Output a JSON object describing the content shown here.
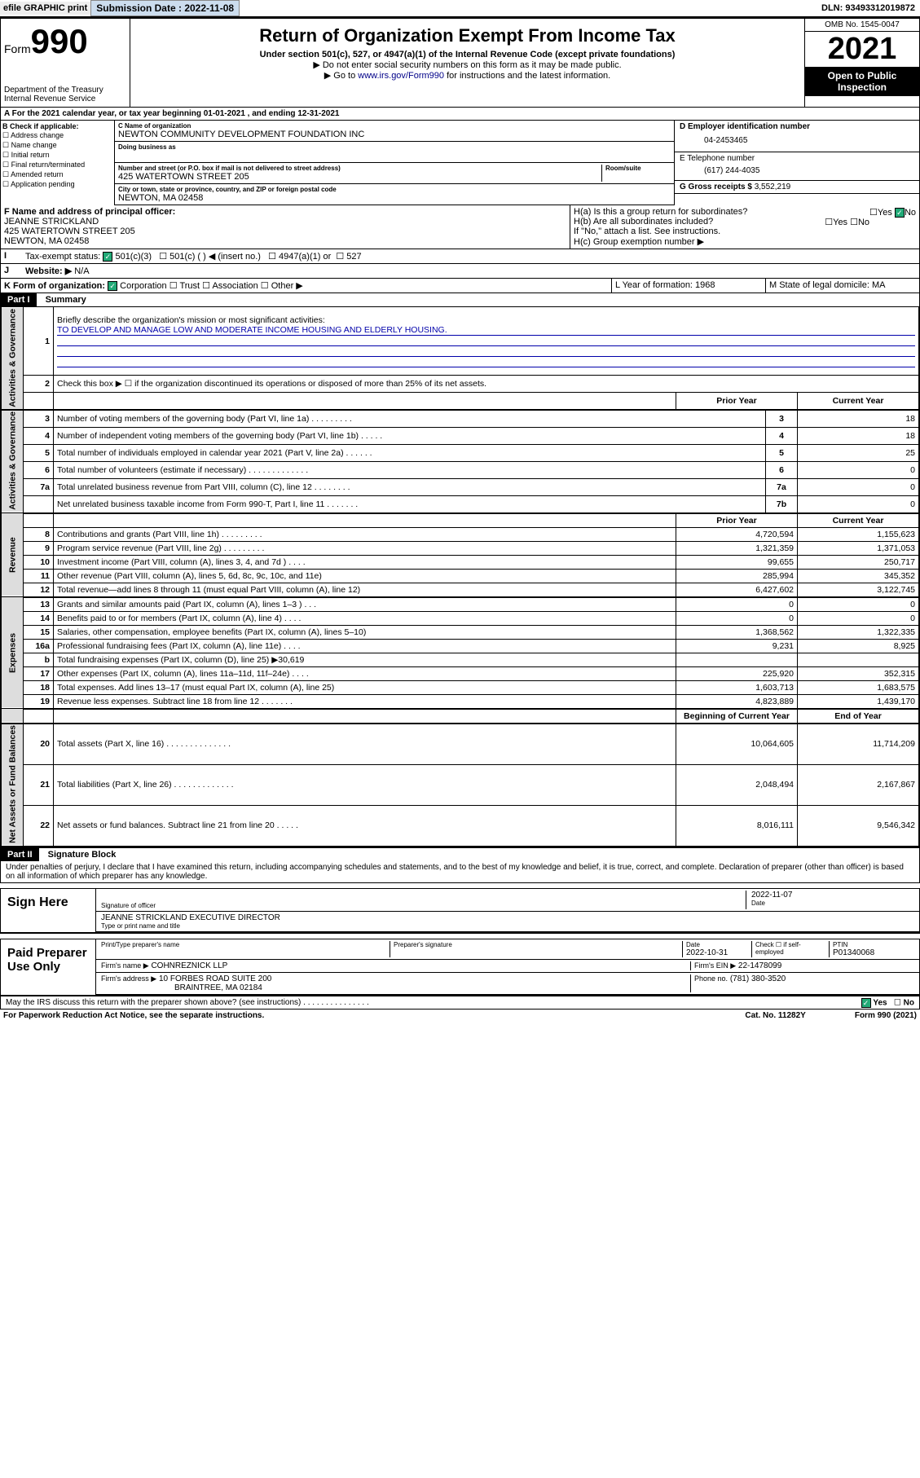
{
  "topbar": {
    "efile": "efile GRAPHIC print",
    "sub_label": "Submission Date : 2022-11-08",
    "dln": "DLN: 93493312019872"
  },
  "header": {
    "form_prefix": "Form",
    "form_num": "990",
    "title": "Return of Organization Exempt From Income Tax",
    "subtitle": "Under section 501(c), 527, or 4947(a)(1) of the Internal Revenue Code (except private foundations)",
    "warn": "▶ Do not enter social security numbers on this form as it may be made public.",
    "goto_pre": "▶ Go to ",
    "goto_link": "www.irs.gov/Form990",
    "goto_post": " for instructions and the latest information.",
    "dept": "Department of the Treasury\nInternal Revenue Service",
    "omb": "OMB No. 1545-0047",
    "year": "2021",
    "open": "Open to Public Inspection"
  },
  "row_a": "A For the 2021 calendar year, or tax year beginning 01-01-2021   , and ending 12-31-2021",
  "col_b": {
    "header": "B Check if applicable:",
    "opts": [
      "Address change",
      "Name change",
      "Initial return",
      "Final return/terminated",
      "Amended return",
      "Application pending"
    ]
  },
  "col_c": {
    "name_lbl": "C Name of organization",
    "name": "NEWTON COMMUNITY DEVELOPMENT FOUNDATION INC",
    "dba_lbl": "Doing business as",
    "addr_lbl": "Number and street (or P.O. box if mail is not delivered to street address)",
    "room_lbl": "Room/suite",
    "addr": "425 WATERTOWN STREET 205",
    "city_lbl": "City or town, state or province, country, and ZIP or foreign postal code",
    "city": "NEWTON, MA  02458"
  },
  "col_d": {
    "ein_lbl": "D Employer identification number",
    "ein": "04-2453465",
    "tel_lbl": "E Telephone number",
    "tel": "(617) 244-4035",
    "gross_lbl": "G Gross receipts $",
    "gross": "3,552,219"
  },
  "row_f": {
    "lbl": "F Name and address of principal officer:",
    "name": "JEANNE STRICKLAND",
    "addr1": "425 WATERTOWN STREET 205",
    "addr2": "NEWTON, MA  02458"
  },
  "row_h": {
    "ha": "H(a)  Is this a group return for subordinates?",
    "ha_yes": "Yes",
    "ha_no": "No",
    "hb": "H(b)  Are all subordinates included?",
    "hb_note": "If \"No,\" attach a list. See instructions.",
    "hc": "H(c)  Group exemption number ▶"
  },
  "row_i": {
    "lbl": "Tax-exempt status:",
    "o1": "501(c)(3)",
    "o2": "501(c) (   ) ◀ (insert no.)",
    "o3": "4947(a)(1) or",
    "o4": "527"
  },
  "row_j": {
    "lbl": "Website: ▶",
    "val": "N/A"
  },
  "row_k": {
    "lbl": "K Form of organization:",
    "o1": "Corporation",
    "o2": "Trust",
    "o3": "Association",
    "o4": "Other ▶",
    "l": "L Year of formation: 1968",
    "m": "M State of legal domicile: MA"
  },
  "part1": {
    "bar": "Part I",
    "title": "Summary",
    "q1": "Briefly describe the organization's mission or most significant activities:",
    "mission": "TO DEVELOP AND MANAGE LOW AND MODERATE INCOME HOUSING AND ELDERLY HOUSING.",
    "q2": "Check this box ▶ ☐  if the organization discontinued its operations or disposed of more than 25% of its net assets.",
    "rows": [
      {
        "n": "3",
        "d": "Number of voting members of the governing body (Part VI, line 1a)  .   .   .   .   .   .   .   .   .",
        "box": "3",
        "v": "18"
      },
      {
        "n": "4",
        "d": "Number of independent voting members of the governing body (Part VI, line 1b)  .   .   .   .   .",
        "box": "4",
        "v": "18"
      },
      {
        "n": "5",
        "d": "Total number of individuals employed in calendar year 2021 (Part V, line 2a)  .   .   .   .   .   .",
        "box": "5",
        "v": "25"
      },
      {
        "n": "6",
        "d": "Total number of volunteers (estimate if necessary)  .   .   .   .   .   .   .   .   .   .   .   .   .",
        "box": "6",
        "v": "0"
      },
      {
        "n": "7a",
        "d": "Total unrelated business revenue from Part VIII, column (C), line 12  .   .   .   .   .   .   .   .",
        "box": "7a",
        "v": "0"
      },
      {
        "n": "",
        "d": "Net unrelated business taxable income from Form 990-T, Part I, line 11  .   .   .   .   .   .   .",
        "box": "7b",
        "v": "0"
      }
    ],
    "hdr_prior": "Prior Year",
    "hdr_curr": "Current Year",
    "rev_rows": [
      {
        "n": "8",
        "d": "Contributions and grants (Part VIII, line 1h)  .   .   .   .   .   .   .   .   .",
        "p": "4,720,594",
        "c": "1,155,623"
      },
      {
        "n": "9",
        "d": "Program service revenue (Part VIII, line 2g)  .   .   .   .   .   .   .   .   .",
        "p": "1,321,359",
        "c": "1,371,053"
      },
      {
        "n": "10",
        "d": "Investment income (Part VIII, column (A), lines 3, 4, and 7d )  .   .   .   .",
        "p": "99,655",
        "c": "250,717"
      },
      {
        "n": "11",
        "d": "Other revenue (Part VIII, column (A), lines 5, 6d, 8c, 9c, 10c, and 11e)",
        "p": "285,994",
        "c": "345,352"
      },
      {
        "n": "12",
        "d": "Total revenue—add lines 8 through 11 (must equal Part VIII, column (A), line 12)",
        "p": "6,427,602",
        "c": "3,122,745"
      }
    ],
    "exp_rows": [
      {
        "n": "13",
        "d": "Grants and similar amounts paid (Part IX, column (A), lines 1–3 )  .   .   .",
        "p": "0",
        "c": "0"
      },
      {
        "n": "14",
        "d": "Benefits paid to or for members (Part IX, column (A), line 4)  .   .   .   .",
        "p": "0",
        "c": "0"
      },
      {
        "n": "15",
        "d": "Salaries, other compensation, employee benefits (Part IX, column (A), lines 5–10)",
        "p": "1,368,562",
        "c": "1,322,335"
      },
      {
        "n": "16a",
        "d": "Professional fundraising fees (Part IX, column (A), line 11e)  .   .   .   .",
        "p": "9,231",
        "c": "8,925"
      },
      {
        "n": "b",
        "d": "Total fundraising expenses (Part IX, column (D), line 25) ▶30,619",
        "p": "",
        "c": ""
      },
      {
        "n": "17",
        "d": "Other expenses (Part IX, column (A), lines 11a–11d, 11f–24e)  .   .   .   .",
        "p": "225,920",
        "c": "352,315"
      },
      {
        "n": "18",
        "d": "Total expenses. Add lines 13–17 (must equal Part IX, column (A), line 25)",
        "p": "1,603,713",
        "c": "1,683,575"
      },
      {
        "n": "19",
        "d": "Revenue less expenses. Subtract line 18 from line 12  .   .   .   .   .   .   .",
        "p": "4,823,889",
        "c": "1,439,170"
      }
    ],
    "hdr_beg": "Beginning of Current Year",
    "hdr_end": "End of Year",
    "net_rows": [
      {
        "n": "20",
        "d": "Total assets (Part X, line 16)  .   .   .   .   .   .   .   .   .   .   .   .   .   .",
        "p": "10,064,605",
        "c": "11,714,209"
      },
      {
        "n": "21",
        "d": "Total liabilities (Part X, line 26)  .   .   .   .   .   .   .   .   .   .   .   .   .",
        "p": "2,048,494",
        "c": "2,167,867"
      },
      {
        "n": "22",
        "d": "Net assets or fund balances. Subtract line 21 from line 20  .   .   .   .   .",
        "p": "8,016,111",
        "c": "9,546,342"
      }
    ],
    "tab_gov": "Activities & Governance",
    "tab_rev": "Revenue",
    "tab_exp": "Expenses",
    "tab_net": "Net Assets or Fund Balances"
  },
  "part2": {
    "bar": "Part II",
    "title": "Signature Block",
    "penalty": "Under penalties of perjury, I declare that I have examined this return, including accompanying schedules and statements, and to the best of my knowledge and belief, it is true, correct, and complete. Declaration of preparer (other than officer) is based on all information of which preparer has any knowledge."
  },
  "sign": {
    "here": "Sign Here",
    "sig_lbl": "Signature of officer",
    "date_lbl": "Date",
    "date": "2022-11-07",
    "name": "JEANNE STRICKLAND EXECUTIVE DIRECTOR",
    "name_lbl": "Type or print name and title"
  },
  "paid": {
    "label": "Paid Preparer Use Only",
    "h1": "Print/Type preparer's name",
    "h2": "Preparer's signature",
    "h3": "Date",
    "h4": "Check ☐ if self-employed",
    "h5": "PTIN",
    "date": "2022-10-31",
    "ptin": "P01340068",
    "firm_lbl": "Firm's name    ▶",
    "firm": "COHNREZNICK LLP",
    "ein_lbl": "Firm's EIN ▶",
    "ein": "22-1478099",
    "addr_lbl": "Firm's address ▶",
    "addr1": "10 FORBES ROAD SUITE 200",
    "addr2": "BRAINTREE, MA  02184",
    "phone_lbl": "Phone no.",
    "phone": "(781) 380-3520"
  },
  "discuss": "May the IRS discuss this return with the preparer shown above? (see instructions)  .   .   .   .   .   .   .   .   .   .   .   .   .   .   .",
  "discuss_yes": "Yes",
  "discuss_no": "No",
  "footer": {
    "l": "For Paperwork Reduction Act Notice, see the separate instructions.",
    "c": "Cat. No. 11282Y",
    "r": "Form 990 (2021)"
  }
}
